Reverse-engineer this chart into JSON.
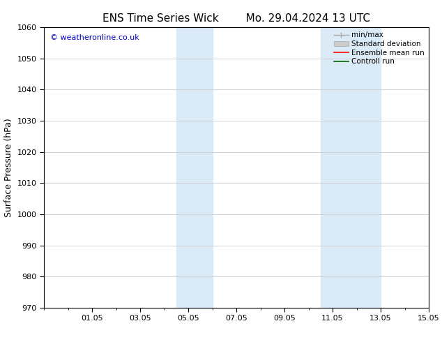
{
  "title": "ENS Time Series Wick        Mo. 29.04.2024 13 UTC",
  "ylabel": "Surface Pressure (hPa)",
  "ylim": [
    970,
    1060
  ],
  "yticks": [
    970,
    980,
    990,
    1000,
    1010,
    1020,
    1030,
    1040,
    1050,
    1060
  ],
  "xlim": [
    0,
    16
  ],
  "xtick_labels": [
    "01.05",
    "03.05",
    "05.05",
    "07.05",
    "09.05",
    "11.05",
    "13.05",
    "15.05"
  ],
  "xtick_positions": [
    2,
    4,
    6,
    8,
    10,
    12,
    14,
    16
  ],
  "shaded_regions": [
    {
      "x_start": 5.5,
      "x_end": 7.0,
      "color": "#daeaf7"
    },
    {
      "x_start": 11.5,
      "x_end": 14.0,
      "color": "#daeaf7"
    }
  ],
  "watermark": "© weatheronline.co.uk",
  "watermark_color": "#0000bb",
  "background_color": "#ffffff",
  "grid_color": "#cccccc",
  "title_fontsize": 11,
  "label_fontsize": 9,
  "tick_fontsize": 8,
  "legend_fontsize": 7.5
}
